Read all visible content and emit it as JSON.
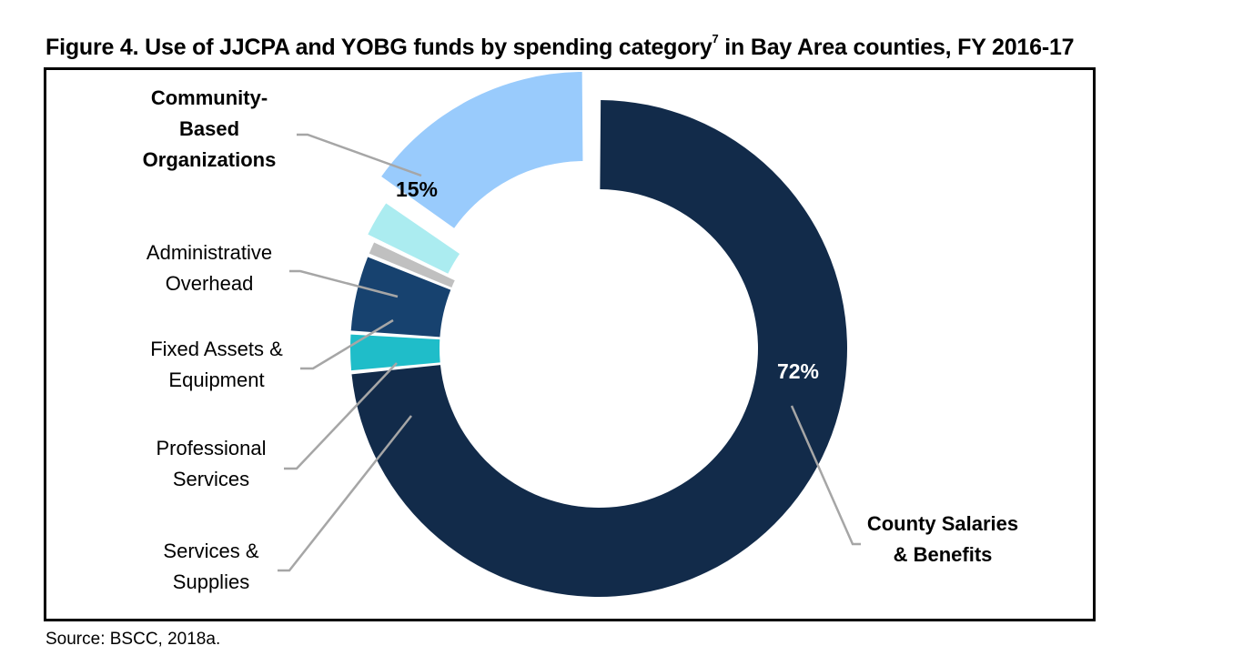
{
  "title": {
    "main": "Figure 4. Use of JJCPA and YOBG funds by spending category",
    "footnote": "7",
    "rest": " in Bay Area counties, FY 2016-17"
  },
  "source": "Source: BSCC, 2018a.",
  "chart_data": {
    "type": "pie",
    "title": "Figure 4. Use of JJCPA and YOBG funds by spending category7 in Bay Area counties, FY 2016-17",
    "series": [
      {
        "name": "County Salaries & Benefits",
        "label_lines": [
          "County Salaries",
          "& Benefits"
        ],
        "value": 72,
        "value_label": "72%",
        "color": "#122b4a",
        "bold": true
      },
      {
        "name": "Services & Supplies",
        "label_lines": [
          "Services &",
          "Supplies"
        ],
        "value": 2.5,
        "value_label": "",
        "color": "#1fbdc9",
        "bold": false
      },
      {
        "name": "Professional Services",
        "label_lines": [
          "Professional",
          "Services"
        ],
        "value": 5,
        "value_label": "",
        "color": "#17426f",
        "bold": false
      },
      {
        "name": "Fixed Assets & Equipment",
        "label_lines": [
          "Fixed Assets &",
          "Equipment"
        ],
        "value": 1,
        "value_label": "",
        "color": "#c0c0c0",
        "bold": false
      },
      {
        "name": "Administrative Overhead",
        "label_lines": [
          "Administrative",
          "Overhead"
        ],
        "value": 2.5,
        "value_label": "",
        "color": "#abecf0",
        "bold": false
      },
      {
        "name": "Community-Based Organizations",
        "label_lines": [
          "Community-",
          "Based",
          "Organizations"
        ],
        "value": 15,
        "value_label": "15%",
        "color": "#99cbfc",
        "bold": true
      }
    ],
    "legend": "none",
    "hole": true
  }
}
